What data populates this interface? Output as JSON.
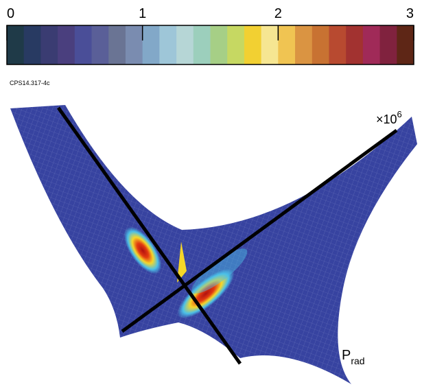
{
  "chart_data": {
    "type": "colorbar",
    "xlim": [
      0,
      3
    ],
    "xticks": [
      0,
      1,
      2,
      3
    ],
    "colors": [
      "#1f3a48",
      "#283a62",
      "#3a3c72",
      "#4a3f7e",
      "#4a4e98",
      "#5a5f98",
      "#6a7494",
      "#7a8cb0",
      "#82a8c8",
      "#9ec6d8",
      "#b6d6d6",
      "#9ccfbc",
      "#a6cf86",
      "#c6d862",
      "#f2d032",
      "#f6e692",
      "#f0c452",
      "#da9442",
      "#c87232",
      "#b84a30",
      "#a23230",
      "#a02a58",
      "#80223e",
      "#5e2616"
    ],
    "figure_id": "CPS14.317-4c",
    "scale_label": {
      "base": "×10",
      "exponent": "6"
    },
    "quantity": {
      "main": "P",
      "sub": "rad"
    }
  }
}
